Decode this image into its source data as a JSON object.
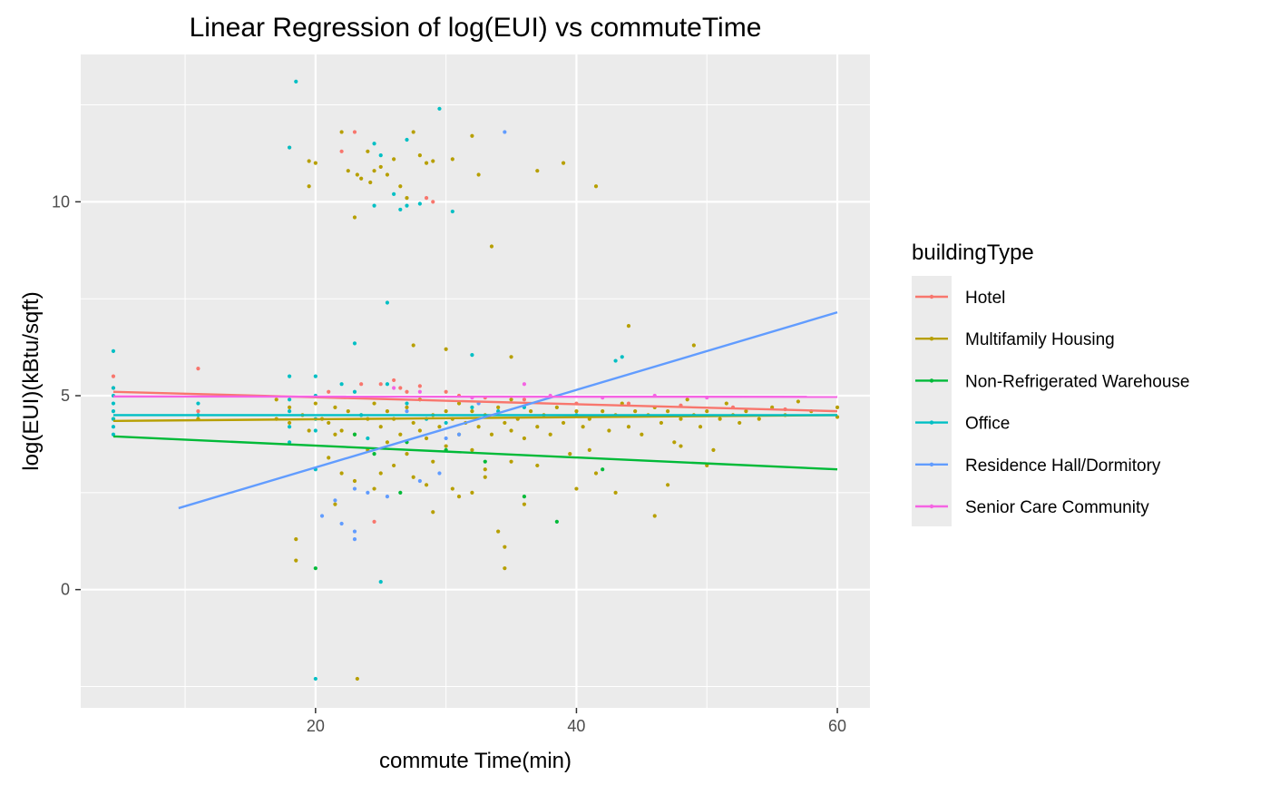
{
  "chart_data": {
    "type": "scatter",
    "title": "Linear Regression of log(EUI) vs commuteTime",
    "xlabel": "commute Time(min)",
    "ylabel": "log(EUI)(kBtu/sqft)",
    "xlim": [
      2.0,
      62.5
    ],
    "ylim": [
      -3.05,
      13.8
    ],
    "x_ticks": [
      20,
      40,
      60
    ],
    "x_minor_ticks": [
      10,
      30,
      50
    ],
    "y_ticks": [
      0,
      5,
      10
    ],
    "y_minor_ticks": [
      -2.5,
      2.5,
      7.5,
      12.5
    ],
    "background": "#ebebeb",
    "grid": true,
    "legend_title": "buildingType",
    "legend_position": "right",
    "series": [
      {
        "name": "Hotel",
        "color": "#f8766d",
        "fit_line": [
          [
            4.5,
            5.1
          ],
          [
            60,
            4.6
          ]
        ],
        "points": [
          [
            4.5,
            5.5
          ],
          [
            4.5,
            5.2
          ],
          [
            11,
            5.7
          ],
          [
            11,
            4.6
          ],
          [
            18,
            11.4
          ],
          [
            21,
            5.1
          ],
          [
            22,
            11.3
          ],
          [
            23,
            11.8
          ],
          [
            23.5,
            5.3
          ],
          [
            24.5,
            1.75
          ],
          [
            25,
            5.3
          ],
          [
            26,
            5.4
          ],
          [
            26.5,
            5.2
          ],
          [
            27,
            5.1
          ],
          [
            28,
            5.25
          ],
          [
            28.5,
            10.1
          ],
          [
            29,
            10.0
          ],
          [
            30,
            5.1
          ],
          [
            31,
            5.0
          ],
          [
            33,
            4.95
          ],
          [
            36,
            4.9
          ],
          [
            40,
            4.8
          ],
          [
            44,
            4.8
          ],
          [
            48,
            4.75
          ],
          [
            52,
            4.7
          ],
          [
            56,
            4.65
          ]
        ]
      },
      {
        "name": "Multifamily Housing",
        "color": "#b79f00",
        "fit_line": [
          [
            4.5,
            4.35
          ],
          [
            60,
            4.5
          ]
        ],
        "points": [
          [
            4.5,
            4.4
          ],
          [
            18.5,
            1.3
          ],
          [
            18.5,
            0.75
          ],
          [
            19.5,
            11.05
          ],
          [
            19.5,
            10.4
          ],
          [
            20,
            11.0
          ],
          [
            21.5,
            2.2
          ],
          [
            22,
            11.8
          ],
          [
            22.5,
            10.8
          ],
          [
            23,
            9.6
          ],
          [
            23.2,
            10.7
          ],
          [
            23.2,
            -2.3
          ],
          [
            23.5,
            10.6
          ],
          [
            24,
            11.3
          ],
          [
            24.2,
            10.5
          ],
          [
            24.5,
            10.8
          ],
          [
            25,
            10.9
          ],
          [
            25.5,
            10.7
          ],
          [
            26,
            11.1
          ],
          [
            26.5,
            10.4
          ],
          [
            27,
            10.1
          ],
          [
            27.5,
            11.8
          ],
          [
            28,
            11.2
          ],
          [
            28.5,
            11.0
          ],
          [
            29,
            11.05
          ],
          [
            30.5,
            11.1
          ],
          [
            32,
            11.7
          ],
          [
            32.5,
            10.7
          ],
          [
            33.5,
            8.85
          ],
          [
            34,
            1.5
          ],
          [
            34.5,
            1.1
          ],
          [
            34.5,
            0.55
          ],
          [
            37,
            10.8
          ],
          [
            39,
            11.0
          ],
          [
            41.5,
            10.4
          ],
          [
            27.5,
            6.3
          ],
          [
            30,
            6.2
          ],
          [
            35,
            6.0
          ],
          [
            44,
            6.8
          ],
          [
            49,
            6.3
          ],
          [
            40,
            2.6
          ],
          [
            43,
            2.5
          ],
          [
            46,
            1.9
          ],
          [
            47,
            2.7
          ],
          [
            29,
            2.0
          ],
          [
            31,
            2.4
          ],
          [
            36,
            2.2
          ],
          [
            21,
            4.3
          ],
          [
            22,
            4.1
          ],
          [
            22.5,
            4.6
          ],
          [
            23,
            4.0
          ],
          [
            23.5,
            4.5
          ],
          [
            24,
            3.6
          ],
          [
            24,
            4.4
          ],
          [
            24.5,
            4.8
          ],
          [
            25,
            4.2
          ],
          [
            25.5,
            3.8
          ],
          [
            25.5,
            4.6
          ],
          [
            26,
            4.4
          ],
          [
            26,
            3.2
          ],
          [
            26.5,
            4.0
          ],
          [
            27,
            4.7
          ],
          [
            27,
            3.5
          ],
          [
            27.5,
            4.3
          ],
          [
            28,
            4.1
          ],
          [
            28,
            4.9
          ],
          [
            28.5,
            3.9
          ],
          [
            29,
            4.5
          ],
          [
            29,
            3.3
          ],
          [
            29.5,
            4.2
          ],
          [
            30,
            4.6
          ],
          [
            30,
            3.7
          ],
          [
            30.5,
            4.4
          ],
          [
            31,
            4.0
          ],
          [
            31,
            4.8
          ],
          [
            31.5,
            4.3
          ],
          [
            32,
            3.6
          ],
          [
            32,
            4.6
          ],
          [
            32.5,
            4.2
          ],
          [
            33,
            4.5
          ],
          [
            33,
            3.1
          ],
          [
            33.5,
            4.0
          ],
          [
            34,
            4.7
          ],
          [
            34.5,
            4.3
          ],
          [
            35,
            4.1
          ],
          [
            35,
            4.9
          ],
          [
            35.5,
            4.4
          ],
          [
            36,
            3.9
          ],
          [
            36.5,
            4.6
          ],
          [
            37,
            4.2
          ],
          [
            37.5,
            4.5
          ],
          [
            38,
            4.0
          ],
          [
            38.5,
            4.7
          ],
          [
            39,
            4.3
          ],
          [
            39.5,
            3.5
          ],
          [
            40,
            4.6
          ],
          [
            40.5,
            4.2
          ],
          [
            41,
            4.4
          ],
          [
            41.5,
            3.0
          ],
          [
            42,
            4.6
          ],
          [
            42.5,
            4.1
          ],
          [
            43,
            4.5
          ],
          [
            43.5,
            4.8
          ],
          [
            44,
            4.2
          ],
          [
            44.5,
            4.6
          ],
          [
            45,
            4.0
          ],
          [
            45.5,
            4.5
          ],
          [
            46,
            4.7
          ],
          [
            46.5,
            4.3
          ],
          [
            47,
            4.6
          ],
          [
            47.5,
            3.8
          ],
          [
            48,
            4.4
          ],
          [
            48.5,
            4.9
          ],
          [
            49,
            4.5
          ],
          [
            49.5,
            4.2
          ],
          [
            50,
            4.6
          ],
          [
            50.5,
            3.6
          ],
          [
            51,
            4.4
          ],
          [
            51.5,
            4.8
          ],
          [
            52,
            4.5
          ],
          [
            52.5,
            4.3
          ],
          [
            53,
            4.6
          ],
          [
            54,
            4.4
          ],
          [
            55,
            4.7
          ],
          [
            56,
            4.5
          ],
          [
            57,
            4.85
          ],
          [
            58,
            4.6
          ],
          [
            60,
            4.45
          ],
          [
            60,
            4.7
          ],
          [
            21,
            3.4
          ],
          [
            22,
            3.0
          ],
          [
            23,
            2.8
          ],
          [
            24.5,
            2.6
          ],
          [
            25,
            3.0
          ],
          [
            27.5,
            2.9
          ],
          [
            28.5,
            2.7
          ],
          [
            30.5,
            2.6
          ],
          [
            32,
            2.5
          ],
          [
            33,
            2.9
          ],
          [
            35,
            3.3
          ],
          [
            37,
            3.2
          ],
          [
            41,
            3.6
          ],
          [
            48,
            3.7
          ],
          [
            50,
            3.2
          ],
          [
            18,
            4.3
          ],
          [
            18,
            4.7
          ],
          [
            19,
            4.5
          ],
          [
            19.5,
            4.1
          ],
          [
            20,
            4.8
          ],
          [
            20.5,
            4.4
          ],
          [
            21.5,
            4.0
          ],
          [
            21.5,
            4.7
          ],
          [
            17,
            4.4
          ],
          [
            17,
            4.9
          ],
          [
            11,
            4.4
          ]
        ]
      },
      {
        "name": "Non-Refrigerated Warehouse",
        "color": "#00ba38",
        "fit_line": [
          [
            4.5,
            3.95
          ],
          [
            60,
            3.1
          ]
        ],
        "points": [
          [
            20,
            0.55
          ],
          [
            23,
            4.0
          ],
          [
            27,
            3.8
          ],
          [
            30,
            3.6
          ],
          [
            33,
            3.3
          ],
          [
            36,
            2.4
          ],
          [
            38.5,
            1.75
          ],
          [
            42,
            3.1
          ],
          [
            26.5,
            2.5
          ],
          [
            24.5,
            3.5
          ]
        ]
      },
      {
        "name": "Office",
        "color": "#00bfc4",
        "fit_line": [
          [
            4.5,
            4.5
          ],
          [
            60,
            4.5
          ]
        ],
        "points": [
          [
            4.5,
            6.15
          ],
          [
            4.5,
            5.2
          ],
          [
            4.5,
            5.0
          ],
          [
            4.5,
            4.8
          ],
          [
            4.5,
            4.6
          ],
          [
            4.5,
            4.4
          ],
          [
            4.5,
            4.2
          ],
          [
            4.5,
            4.0
          ],
          [
            11,
            4.8
          ],
          [
            11,
            4.5
          ],
          [
            18.5,
            13.1
          ],
          [
            18,
            11.4
          ],
          [
            18,
            5.5
          ],
          [
            18,
            4.9
          ],
          [
            18,
            4.6
          ],
          [
            18,
            4.2
          ],
          [
            18,
            3.8
          ],
          [
            20,
            5.5
          ],
          [
            20,
            5.0
          ],
          [
            20,
            4.4
          ],
          [
            20,
            4.1
          ],
          [
            20,
            3.1
          ],
          [
            22,
            5.3
          ],
          [
            23,
            6.35
          ],
          [
            23,
            5.1
          ],
          [
            23.5,
            4.5
          ],
          [
            24,
            3.9
          ],
          [
            24.5,
            11.5
          ],
          [
            24.5,
            9.9
          ],
          [
            25,
            11.2
          ],
          [
            25.5,
            7.4
          ],
          [
            25.5,
            5.3
          ],
          [
            26,
            10.2
          ],
          [
            26.5,
            9.8
          ],
          [
            27,
            9.9
          ],
          [
            27,
            11.6
          ],
          [
            27,
            4.8
          ],
          [
            28,
            9.95
          ],
          [
            28.5,
            4.4
          ],
          [
            29.5,
            12.4
          ],
          [
            30.5,
            9.75
          ],
          [
            32,
            6.05
          ],
          [
            32,
            4.7
          ],
          [
            25,
            0.2
          ],
          [
            20,
            -2.3
          ],
          [
            43.5,
            6.0
          ],
          [
            43,
            5.9
          ],
          [
            36,
            4.7
          ],
          [
            40,
            4.5
          ],
          [
            30,
            4.3
          ],
          [
            34,
            4.6
          ]
        ]
      },
      {
        "name": "Residence Hall/Dormitory",
        "color": "#619cff",
        "fit_line": [
          [
            9.5,
            2.1
          ],
          [
            60,
            7.15
          ]
        ],
        "points": [
          [
            34.5,
            11.8
          ],
          [
            20.5,
            1.9
          ],
          [
            22,
            1.7
          ],
          [
            23,
            1.3
          ],
          [
            23,
            1.5
          ],
          [
            21.5,
            2.3
          ],
          [
            23,
            2.6
          ],
          [
            24,
            2.5
          ],
          [
            25.5,
            2.4
          ],
          [
            28,
            2.8
          ],
          [
            29.5,
            3.0
          ],
          [
            30,
            3.9
          ],
          [
            27,
            4.6
          ],
          [
            32.5,
            4.8
          ],
          [
            31,
            4.0
          ]
        ]
      },
      {
        "name": "Senior Care Community",
        "color": "#f564e3",
        "fit_line": [
          [
            4.5,
            4.98
          ],
          [
            60,
            4.97
          ]
        ],
        "points": [
          [
            26,
            5.2
          ],
          [
            28,
            5.1
          ],
          [
            32,
            4.95
          ],
          [
            36,
            5.3
          ],
          [
            38,
            5.0
          ],
          [
            42,
            4.95
          ],
          [
            46,
            5.0
          ],
          [
            50,
            4.95
          ]
        ]
      }
    ]
  }
}
